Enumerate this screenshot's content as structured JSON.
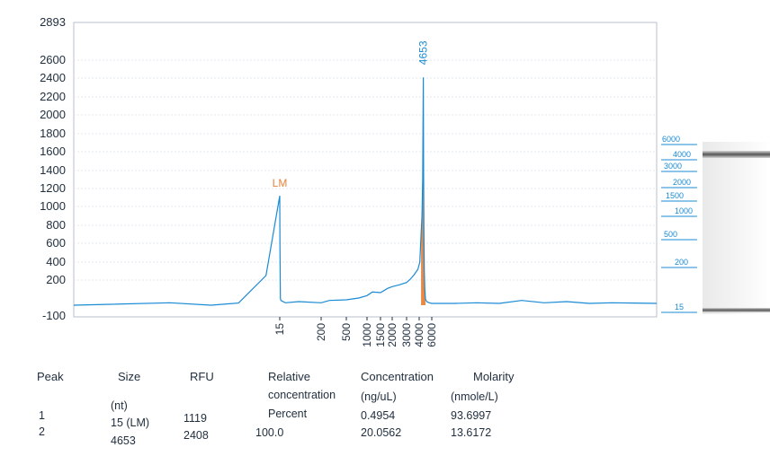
{
  "chart_data": {
    "type": "line",
    "y_ticks": [
      2893,
      2600,
      2400,
      2200,
      2000,
      1800,
      1600,
      1400,
      1200,
      1000,
      800,
      600,
      400,
      200,
      -100
    ],
    "ylim": [
      -100,
      2893
    ],
    "x_ticks": [
      "15",
      "200",
      "500",
      "1000",
      "1500",
      "2000",
      "3000",
      "4000",
      "6000"
    ],
    "grid": true,
    "annotations": [
      {
        "text": "LM",
        "x": 15,
        "y": 1119,
        "color": "#e8833a"
      },
      {
        "text": "4653",
        "x": 4653,
        "y": 2408,
        "color": "#1a8ad4"
      }
    ],
    "series": [
      {
        "values_x": [
          0,
          7,
          10,
          12,
          14,
          15,
          16,
          18,
          20,
          40,
          100,
          200,
          300,
          500,
          800,
          1000,
          1200,
          1500,
          1800,
          2000,
          2500,
          3000,
          3300,
          3600,
          3900,
          4100,
          4300,
          4450,
          4500,
          4550,
          4600,
          4653,
          4700,
          4760,
          4820,
          4900,
          5000,
          5200,
          5600,
          6000,
          7000,
          8000,
          9000,
          10000,
          11000,
          12000,
          13000,
          14000,
          15000,
          16000
        ],
        "values_y": [
          0,
          10,
          0,
          8,
          250,
          1119,
          600,
          50,
          30,
          10,
          20,
          10,
          30,
          35,
          50,
          70,
          100,
          95,
          130,
          145,
          160,
          180,
          210,
          260,
          320,
          400,
          700,
          900,
          1100,
          1300,
          1800,
          2408,
          1400,
          700,
          300,
          120,
          40,
          20,
          10,
          5,
          5,
          10,
          5,
          30,
          10,
          20,
          5,
          10,
          8,
          5
        ],
        "color": "#1a8ad4"
      }
    ],
    "filled_peak": {
      "from": 4250,
      "to": 5050,
      "color": "#e8833a"
    }
  },
  "ladder": {
    "labels": [
      "6000",
      "4000",
      "3000",
      "2000",
      "1500",
      "1000",
      "500",
      "200",
      "15"
    ],
    "color": "#1a8ad4"
  },
  "table": {
    "headers": {
      "peak": "Peak",
      "size": "Size",
      "rfu": "RFU",
      "relative": "Relative",
      "concentration": "Concentration",
      "molarity": "Molarity"
    },
    "subheaders": {
      "size_unit": "(nt)",
      "relative_line2": "concentration",
      "relative_line3": "Percent",
      "conc_unit": "(ng/uL)",
      "molarity_unit": "(nmole/L)"
    },
    "rows": [
      {
        "peak": "1",
        "size": "15 (LM)",
        "rfu": "1119",
        "percent": "",
        "concentration": "0.4954",
        "molarity": "93.6997"
      },
      {
        "peak": "2",
        "size": "4653",
        "rfu": "2408",
        "percent": "100.0",
        "concentration": "20.0562",
        "molarity": "13.6172"
      }
    ]
  }
}
